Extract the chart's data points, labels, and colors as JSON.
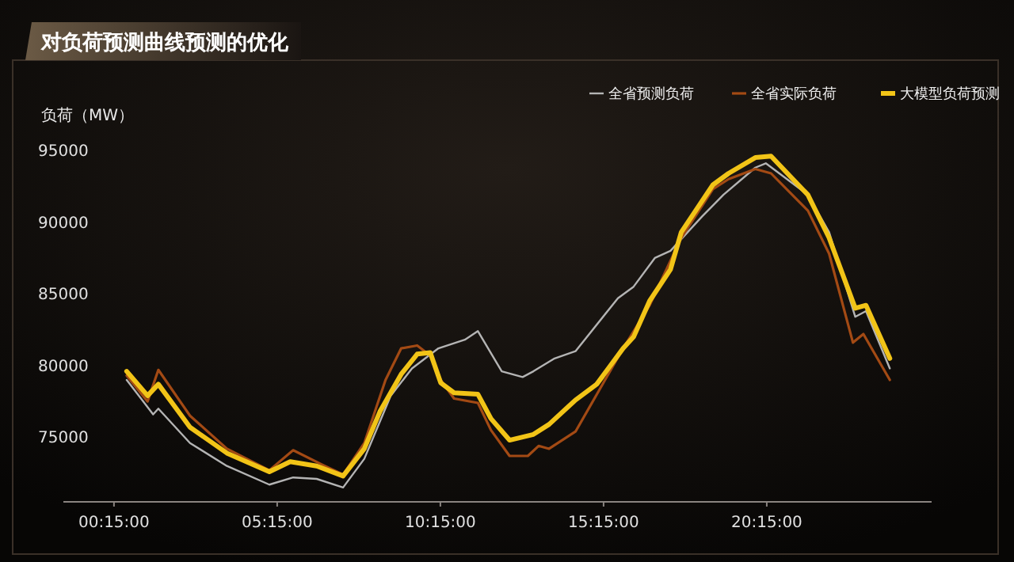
{
  "chart_data": {
    "type": "line",
    "title": "对负荷预测曲线预测的优化",
    "ylabel": "负荷（MW）",
    "legend": "top right",
    "xlim": [
      -1.3,
      25.3
    ],
    "xticks": [
      {
        "value": 0.25,
        "label": "00:15:00"
      },
      {
        "value": 5.25,
        "label": "05:15:00"
      },
      {
        "value": 10.25,
        "label": "10:15:00"
      },
      {
        "value": 15.25,
        "label": "15:15:00"
      },
      {
        "value": 20.25,
        "label": "20:15:00"
      }
    ],
    "ylim": [
      70500,
      95000
    ],
    "yticks": [
      75000,
      80000,
      85000,
      90000,
      95000
    ],
    "series": [
      {
        "name": "全省预测负荷",
        "color": "#b4b4b4",
        "x": [
          0.64,
          1.45,
          1.61,
          2.58,
          3.71,
          5.01,
          5.74,
          6.46,
          7.27,
          7.92,
          8.73,
          9.38,
          10.19,
          11.0,
          11.4,
          12.13,
          12.77,
          13.1,
          13.75,
          14.39,
          15.69,
          16.17,
          16.82,
          17.3,
          18.27,
          18.92,
          19.9,
          20.22,
          21.51,
          22.16,
          22.96,
          23.29,
          24.02
        ],
        "values": [
          79000,
          76600,
          77000,
          74600,
          73000,
          71700,
          72200,
          72100,
          71500,
          73500,
          77900,
          79800,
          81200,
          81800,
          82400,
          79600,
          79200,
          79600,
          80500,
          81000,
          84700,
          85500,
          87500,
          88000,
          90400,
          91900,
          93800,
          94100,
          91900,
          89300,
          83400,
          83800,
          79800
        ]
      },
      {
        "name": "全省实际负荷",
        "color": "#a34a14",
        "x": [
          0.64,
          1.28,
          1.61,
          2.58,
          3.71,
          5.01,
          5.74,
          6.62,
          7.27,
          7.92,
          8.57,
          9.05,
          9.54,
          9.94,
          10.26,
          10.67,
          11.4,
          11.8,
          12.37,
          12.93,
          13.26,
          13.58,
          14.39,
          15.85,
          16.66,
          17.63,
          18.6,
          19.08,
          19.9,
          20.38,
          21.51,
          22.16,
          22.89,
          23.21,
          24.02
        ],
        "values": [
          79300,
          77500,
          79700,
          76500,
          74200,
          72700,
          74100,
          73100,
          72400,
          74600,
          79000,
          81200,
          81400,
          80700,
          79000,
          77700,
          77400,
          75500,
          73700,
          73700,
          74400,
          74200,
          75400,
          81200,
          84200,
          88900,
          92300,
          93000,
          93700,
          93400,
          90800,
          87800,
          81600,
          82200,
          79000
        ]
      },
      {
        "name": "大模型负荷预测",
        "color": "#f2c417",
        "x": [
          0.64,
          1.28,
          1.61,
          2.58,
          3.71,
          5.01,
          5.65,
          6.46,
          7.27,
          7.92,
          8.4,
          9.05,
          9.54,
          9.94,
          10.26,
          10.67,
          11.4,
          11.8,
          12.37,
          13.1,
          13.58,
          14.39,
          15.04,
          15.85,
          16.17,
          16.66,
          17.3,
          17.63,
          18.6,
          19.08,
          19.9,
          20.38,
          21.51,
          22.16,
          22.96,
          23.29,
          24.02
        ],
        "values": [
          79600,
          77900,
          78700,
          75700,
          73900,
          72600,
          73300,
          73000,
          72300,
          74200,
          76800,
          79400,
          80800,
          80900,
          78800,
          78100,
          78000,
          76300,
          74800,
          75200,
          75900,
          77600,
          78700,
          81200,
          82000,
          84500,
          86700,
          89300,
          92600,
          93400,
          94500,
          94600,
          91900,
          88900,
          84000,
          84200,
          80500
        ]
      }
    ]
  }
}
